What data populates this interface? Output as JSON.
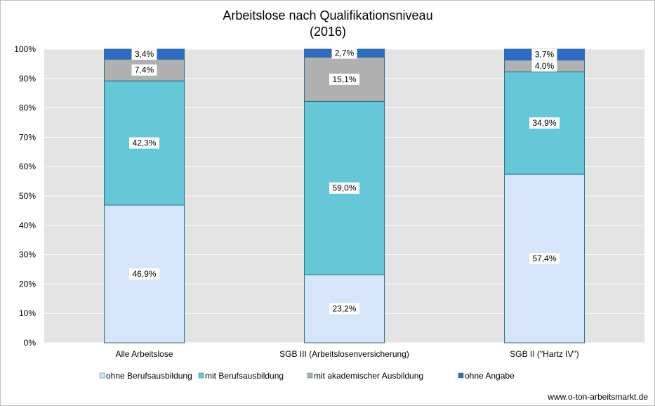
{
  "chart_data": {
    "type": "bar",
    "stacked": true,
    "percent": true,
    "title": "Arbeitslose nach Qualifikationsniveau",
    "subtitle": "(2016)",
    "categories": [
      "Alle Arbeitslose",
      "SGB III (Arbeitslosenversicherung)",
      "SGB II (\"Hartz IV\")"
    ],
    "series": [
      {
        "name": "ohne Berufsausbildung",
        "values": [
          46.9,
          23.2,
          57.4
        ],
        "labels": [
          "46,9%",
          "23,2%",
          "57,4%"
        ],
        "color": "#d6e6fa"
      },
      {
        "name": "mit Berufsausbildung",
        "values": [
          42.3,
          59.0,
          34.9
        ],
        "labels": [
          "42,3%",
          "59,0%",
          "34,9%"
        ],
        "color": "#64c8d8"
      },
      {
        "name": "mit akademischer Ausbildung",
        "values": [
          7.4,
          15.1,
          4.0
        ],
        "labels": [
          "7,4%",
          "15,1%",
          "4,0%"
        ],
        "color": "#b0b0b0"
      },
      {
        "name": "ohne Angabe",
        "values": [
          3.4,
          2.7,
          3.7
        ],
        "labels": [
          "3,4%",
          "2,7%",
          "3,7%"
        ],
        "color": "#2e6ac8"
      }
    ],
    "ylim": [
      0,
      100
    ],
    "yticks": [
      "0%",
      "10%",
      "20%",
      "30%",
      "40%",
      "50%",
      "60%",
      "70%",
      "80%",
      "90%",
      "100%"
    ],
    "grid": true,
    "legend_position": "bottom",
    "plot_background": "#e3e3e3"
  },
  "credit": "www.o-ton-arbeitsmarkt.de"
}
